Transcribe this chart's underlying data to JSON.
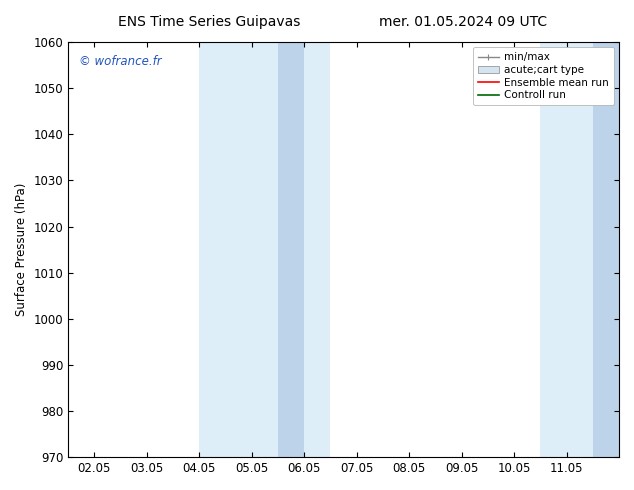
{
  "title_left": "ENS Time Series Guipavas",
  "title_right": "mer. 01.05.2024 09 UTC",
  "ylabel": "Surface Pressure (hPa)",
  "ylim": [
    970,
    1060
  ],
  "yticks": [
    970,
    980,
    990,
    1000,
    1010,
    1020,
    1030,
    1040,
    1050,
    1060
  ],
  "xtick_labels": [
    "02.05",
    "03.05",
    "04.05",
    "05.05",
    "06.05",
    "07.05",
    "08.05",
    "09.05",
    "10.05",
    "11.05"
  ],
  "xtick_values": [
    1,
    2,
    3,
    4,
    5,
    6,
    7,
    8,
    9,
    10
  ],
  "xlim": [
    0.5,
    11.0
  ],
  "shaded_bands": [
    {
      "x_start": 3.0,
      "x_end": 5.5,
      "color": "#ddeef8"
    },
    {
      "x_start": 9.5,
      "x_end": 11.0,
      "color": "#ddeef8"
    }
  ],
  "narrow_bands": [
    {
      "x_start": 4.5,
      "x_end": 5.0,
      "color": "#bdd3ea"
    },
    {
      "x_start": 10.5,
      "x_end": 11.0,
      "color": "#bdd3ea"
    }
  ],
  "watermark_text": "© wofrance.fr",
  "watermark_color": "#2255bb",
  "legend_entries": [
    {
      "label": "min/max"
    },
    {
      "label": "acute;cart type"
    },
    {
      "label": "Ensemble mean run"
    },
    {
      "label": "Controll run"
    }
  ],
  "bg_color": "#ffffff",
  "tick_label_fontsize": 8.5,
  "ylabel_fontsize": 8.5,
  "title_fontsize": 10
}
